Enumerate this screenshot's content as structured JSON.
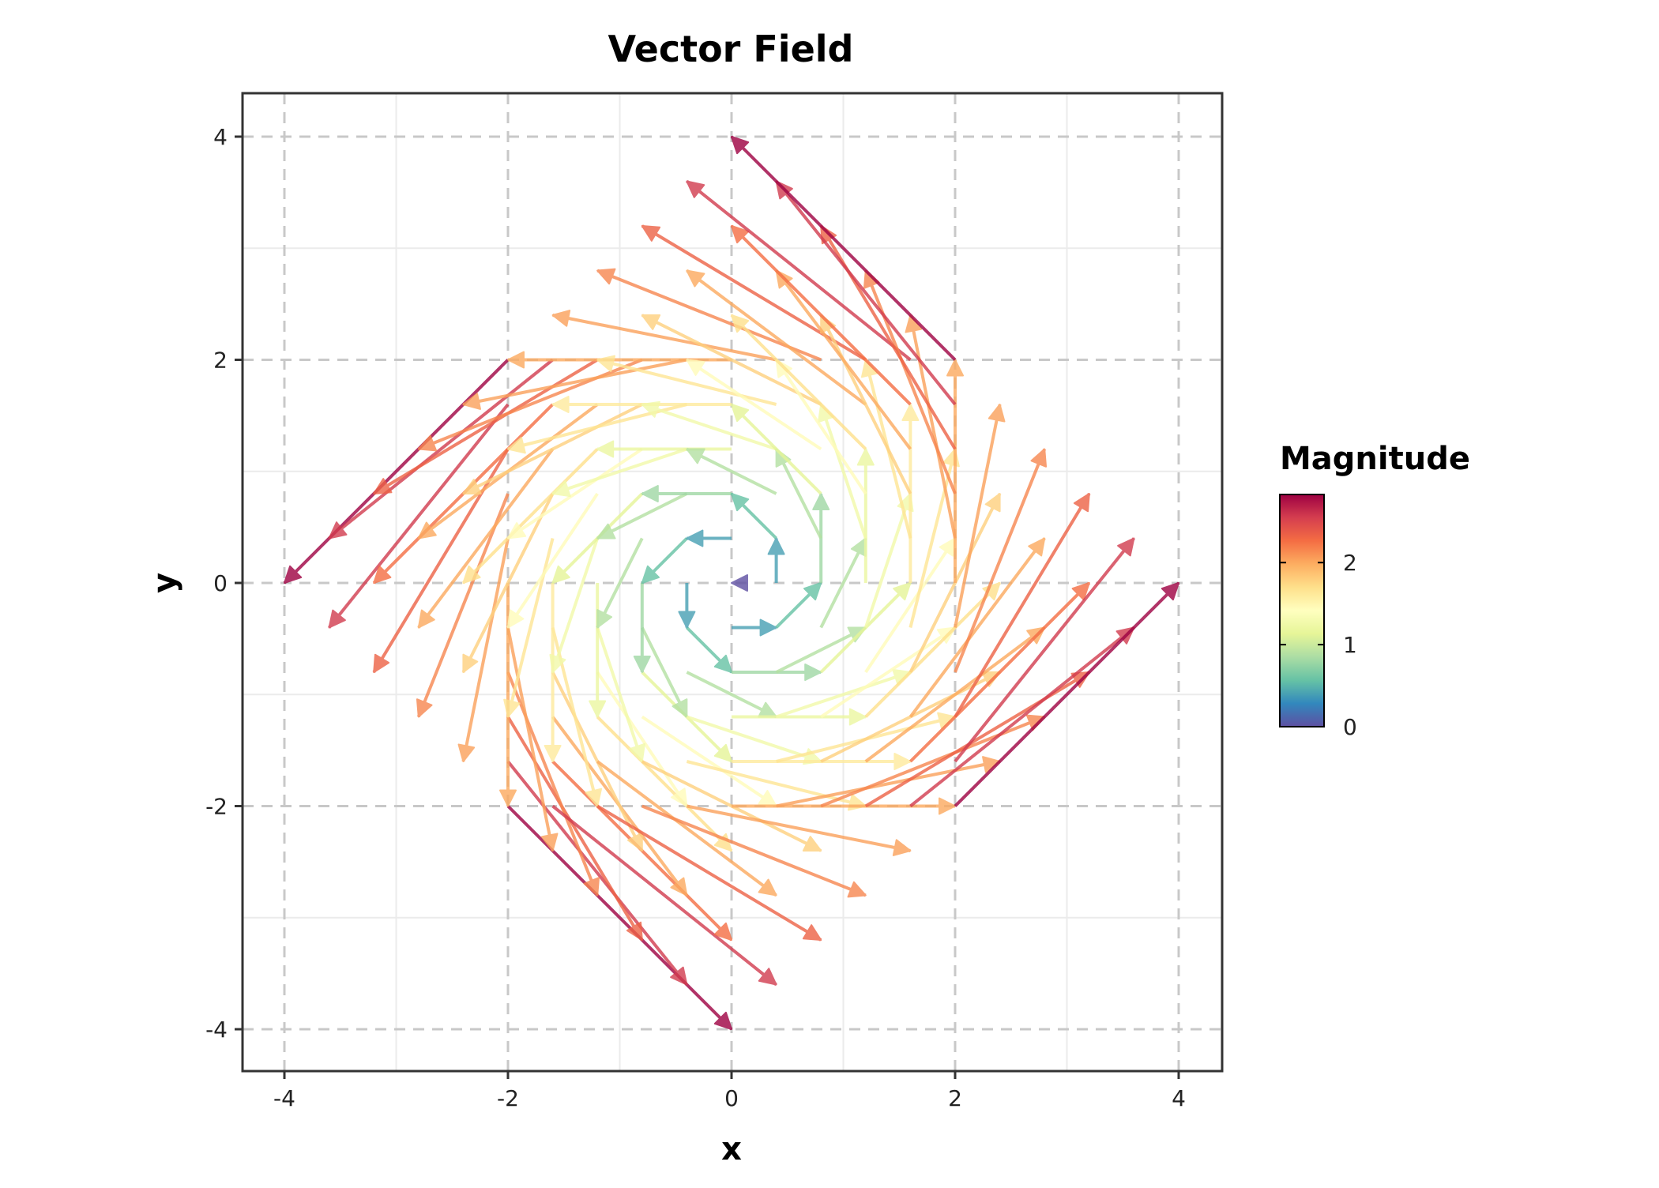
{
  "chart_data": {
    "type": "quiver",
    "title": "Vector Field",
    "xlabel": "x",
    "ylabel": "y",
    "xlim": [
      -4.4,
      4.4
    ],
    "ylim": [
      -4.4,
      4.4
    ],
    "x_ticks": [
      -4,
      -2,
      0,
      2,
      4
    ],
    "y_ticks": [
      -4,
      -2,
      0,
      2,
      4
    ],
    "x_tick_labels": [
      "-4",
      "-2",
      "0",
      "2",
      "4"
    ],
    "y_tick_labels": [
      "-4",
      "-2",
      "0",
      "2",
      "4"
    ],
    "grid": true,
    "grid_x": [
      -2,
      -1.6,
      -1.2,
      -0.8,
      -0.4,
      0,
      0.4,
      0.8,
      1.2,
      1.6,
      2
    ],
    "grid_y": [
      -2,
      -1.6,
      -1.2,
      -0.8,
      -0.4,
      0,
      0.4,
      0.8,
      1.2,
      1.6,
      2
    ],
    "field": {
      "u": "-y",
      "v": "x",
      "color": "magnitude = sqrt(u^2+v^2)"
    },
    "colorbar": {
      "title": "Magnitude",
      "range": [
        0,
        2.83
      ],
      "ticks": [
        0,
        1,
        2
      ],
      "tick_labels": [
        "0",
        "1",
        "2"
      ],
      "colors": [
        "#5e4fa2",
        "#3288bd",
        "#66c2a5",
        "#abdda4",
        "#e6f598",
        "#ffffbf",
        "#fee08b",
        "#fdae61",
        "#f46d43",
        "#d53e4f",
        "#9e0142"
      ]
    },
    "legend_position": "right"
  }
}
